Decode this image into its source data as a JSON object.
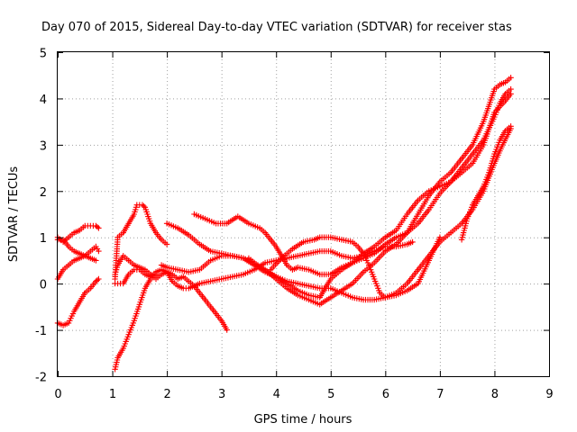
{
  "chart_data": {
    "type": "scatter",
    "title": "Day 070 of 2015, Sidereal Day-to-day VTEC variation (SDTVAR) for receiver stas",
    "xlabel": "GPS time / hours",
    "ylabel": "SDTVAR / TECUs",
    "xlim": [
      0,
      9
    ],
    "ylim": [
      -2,
      5
    ],
    "xticks": [
      "0",
      "1",
      "2",
      "3",
      "4",
      "5",
      "6",
      "7",
      "8",
      "9"
    ],
    "yticks": [
      "-2",
      "-1",
      "0",
      "1",
      "2",
      "3",
      "4",
      "5"
    ],
    "grid": true,
    "legend": "none",
    "marker": "+",
    "series_color": "#ff0000",
    "series": [
      {
        "name": "trace-1",
        "points": [
          [
            0.0,
            1.0
          ],
          [
            0.1,
            0.9
          ],
          [
            0.2,
            1.0
          ],
          [
            0.3,
            1.1
          ],
          [
            0.4,
            1.15
          ],
          [
            0.5,
            1.25
          ],
          [
            0.6,
            1.25
          ],
          [
            0.7,
            1.25
          ],
          [
            0.75,
            1.2
          ]
        ]
      },
      {
        "name": "trace-2",
        "points": [
          [
            0.0,
            0.95
          ],
          [
            0.1,
            0.95
          ],
          [
            0.2,
            0.8
          ],
          [
            0.3,
            0.7
          ],
          [
            0.4,
            0.65
          ],
          [
            0.5,
            0.6
          ],
          [
            0.6,
            0.55
          ],
          [
            0.7,
            0.5
          ]
        ]
      },
      {
        "name": "trace-3",
        "points": [
          [
            0.0,
            0.1
          ],
          [
            0.1,
            0.3
          ],
          [
            0.2,
            0.4
          ],
          [
            0.3,
            0.5
          ],
          [
            0.4,
            0.55
          ],
          [
            0.5,
            0.6
          ],
          [
            0.6,
            0.7
          ],
          [
            0.7,
            0.8
          ],
          [
            0.75,
            0.7
          ]
        ]
      },
      {
        "name": "trace-4",
        "points": [
          [
            0.0,
            -0.85
          ],
          [
            0.1,
            -0.9
          ],
          [
            0.2,
            -0.85
          ],
          [
            0.3,
            -0.6
          ],
          [
            0.4,
            -0.4
          ],
          [
            0.5,
            -0.2
          ],
          [
            0.6,
            -0.1
          ],
          [
            0.7,
            0.05
          ],
          [
            0.75,
            0.1
          ]
        ]
      },
      {
        "name": "trace-5",
        "points": [
          [
            1.05,
            -1.85
          ],
          [
            1.1,
            -1.6
          ],
          [
            1.2,
            -1.4
          ],
          [
            1.3,
            -1.1
          ],
          [
            1.4,
            -0.8
          ],
          [
            1.5,
            -0.45
          ],
          [
            1.6,
            -0.1
          ],
          [
            1.7,
            0.1
          ],
          [
            1.8,
            0.2
          ]
        ]
      },
      {
        "name": "trace-6",
        "points": [
          [
            1.05,
            0.1
          ],
          [
            1.1,
            1.0
          ],
          [
            1.2,
            1.1
          ],
          [
            1.3,
            1.3
          ],
          [
            1.4,
            1.5
          ],
          [
            1.45,
            1.7
          ],
          [
            1.55,
            1.7
          ],
          [
            1.6,
            1.65
          ],
          [
            1.7,
            1.3
          ],
          [
            1.8,
            1.1
          ],
          [
            1.9,
            0.95
          ],
          [
            2.0,
            0.85
          ]
        ]
      },
      {
        "name": "trace-7",
        "points": [
          [
            1.05,
            0.0
          ],
          [
            1.2,
            0.0
          ],
          [
            1.3,
            0.2
          ],
          [
            1.4,
            0.3
          ],
          [
            1.5,
            0.3
          ],
          [
            1.6,
            0.2
          ],
          [
            1.7,
            0.15
          ],
          [
            1.8,
            0.25
          ],
          [
            1.9,
            0.3
          ],
          [
            2.0,
            0.25
          ],
          [
            2.1,
            0.2
          ],
          [
            2.2,
            0.1
          ],
          [
            2.3,
            0.15
          ],
          [
            2.4,
            0.05
          ],
          [
            2.5,
            -0.05
          ],
          [
            2.6,
            -0.2
          ],
          [
            2.7,
            -0.35
          ],
          [
            2.8,
            -0.5
          ],
          [
            2.9,
            -0.65
          ],
          [
            3.0,
            -0.8
          ],
          [
            3.1,
            -1.0
          ]
        ]
      },
      {
        "name": "trace-8",
        "points": [
          [
            1.05,
            0.2
          ],
          [
            1.1,
            0.4
          ],
          [
            1.2,
            0.6
          ],
          [
            1.3,
            0.5
          ],
          [
            1.4,
            0.4
          ],
          [
            1.5,
            0.35
          ],
          [
            1.6,
            0.3
          ],
          [
            1.7,
            0.2
          ],
          [
            1.8,
            0.1
          ],
          [
            1.9,
            0.2
          ],
          [
            2.0,
            0.25
          ],
          [
            2.1,
            0.05
          ],
          [
            2.2,
            -0.05
          ],
          [
            2.3,
            -0.1
          ],
          [
            2.4,
            -0.1
          ],
          [
            2.5,
            -0.05
          ],
          [
            2.6,
            0.0
          ],
          [
            2.8,
            0.05
          ],
          [
            3.0,
            0.1
          ],
          [
            3.2,
            0.15
          ],
          [
            3.4,
            0.2
          ],
          [
            3.6,
            0.3
          ],
          [
            3.8,
            0.45
          ],
          [
            4.0,
            0.5
          ],
          [
            4.2,
            0.55
          ],
          [
            4.4,
            0.6
          ],
          [
            4.6,
            0.65
          ],
          [
            4.8,
            0.7
          ],
          [
            5.0,
            0.7
          ],
          [
            5.2,
            0.6
          ],
          [
            5.4,
            0.55
          ],
          [
            5.6,
            0.6
          ],
          [
            5.8,
            0.7
          ],
          [
            6.0,
            0.8
          ],
          [
            6.2,
            0.8
          ],
          [
            6.4,
            0.85
          ],
          [
            6.5,
            0.9
          ]
        ]
      },
      {
        "name": "trace-9",
        "points": [
          [
            1.9,
            0.4
          ],
          [
            2.0,
            0.35
          ],
          [
            2.2,
            0.3
          ],
          [
            2.4,
            0.25
          ],
          [
            2.6,
            0.3
          ],
          [
            2.8,
            0.5
          ],
          [
            3.0,
            0.6
          ],
          [
            3.2,
            0.6
          ],
          [
            3.4,
            0.55
          ],
          [
            3.6,
            0.4
          ],
          [
            3.8,
            0.25
          ],
          [
            4.0,
            0.15
          ],
          [
            4.2,
            0.05
          ],
          [
            4.4,
            0.0
          ],
          [
            4.6,
            -0.05
          ],
          [
            4.8,
            -0.1
          ],
          [
            5.0,
            -0.1
          ],
          [
            5.2,
            -0.2
          ],
          [
            5.4,
            -0.3
          ],
          [
            5.6,
            -0.35
          ],
          [
            5.8,
            -0.35
          ],
          [
            6.0,
            -0.3
          ],
          [
            6.2,
            -0.2
          ],
          [
            6.4,
            0.0
          ],
          [
            6.6,
            0.3
          ],
          [
            6.8,
            0.6
          ],
          [
            7.0,
            0.9
          ],
          [
            7.2,
            1.1
          ],
          [
            7.4,
            1.3
          ],
          [
            7.6,
            1.6
          ],
          [
            7.8,
            2.0
          ],
          [
            8.0,
            2.6
          ],
          [
            8.15,
            3.0
          ],
          [
            8.3,
            3.35
          ]
        ]
      },
      {
        "name": "trace-10",
        "points": [
          [
            2.5,
            1.5
          ],
          [
            2.7,
            1.4
          ],
          [
            2.9,
            1.3
          ],
          [
            3.1,
            1.3
          ],
          [
            3.3,
            1.45
          ],
          [
            3.5,
            1.3
          ],
          [
            3.7,
            1.2
          ],
          [
            3.8,
            1.1
          ],
          [
            4.0,
            0.8
          ],
          [
            4.1,
            0.6
          ],
          [
            4.2,
            0.4
          ],
          [
            4.3,
            0.3
          ],
          [
            4.4,
            0.35
          ],
          [
            4.6,
            0.3
          ],
          [
            4.8,
            0.2
          ],
          [
            5.0,
            0.2
          ],
          [
            5.2,
            0.35
          ],
          [
            5.4,
            0.45
          ],
          [
            5.6,
            0.55
          ],
          [
            5.8,
            0.65
          ],
          [
            6.0,
            0.85
          ],
          [
            6.2,
            1.0
          ],
          [
            6.4,
            1.1
          ],
          [
            6.6,
            1.3
          ],
          [
            6.8,
            1.6
          ],
          [
            7.0,
            1.95
          ],
          [
            7.2,
            2.2
          ],
          [
            7.4,
            2.5
          ],
          [
            7.6,
            2.8
          ],
          [
            7.8,
            3.1
          ],
          [
            8.0,
            3.6
          ],
          [
            8.1,
            3.9
          ],
          [
            8.2,
            4.1
          ],
          [
            8.3,
            4.2
          ]
        ]
      },
      {
        "name": "trace-11",
        "points": [
          [
            2.0,
            1.3
          ],
          [
            2.2,
            1.2
          ],
          [
            2.4,
            1.05
          ],
          [
            2.6,
            0.85
          ],
          [
            2.8,
            0.7
          ],
          [
            3.0,
            0.65
          ],
          [
            3.2,
            0.6
          ],
          [
            3.4,
            0.55
          ],
          [
            3.6,
            0.45
          ],
          [
            3.8,
            0.3
          ],
          [
            4.0,
            0.15
          ],
          [
            4.2,
            0.0
          ],
          [
            4.4,
            -0.15
          ],
          [
            4.6,
            -0.25
          ],
          [
            4.8,
            -0.3
          ],
          [
            4.9,
            -0.1
          ],
          [
            5.0,
            0.1
          ],
          [
            5.2,
            0.3
          ],
          [
            5.4,
            0.45
          ],
          [
            5.6,
            0.65
          ],
          [
            5.8,
            0.8
          ],
          [
            6.0,
            1.0
          ],
          [
            6.2,
            1.15
          ],
          [
            6.4,
            1.5
          ],
          [
            6.6,
            1.8
          ],
          [
            6.8,
            2.0
          ],
          [
            7.0,
            2.1
          ],
          [
            7.2,
            2.2
          ],
          [
            7.4,
            2.4
          ],
          [
            7.6,
            2.6
          ],
          [
            7.8,
            3.0
          ],
          [
            8.0,
            3.7
          ],
          [
            8.2,
            3.95
          ],
          [
            8.3,
            4.1
          ]
        ]
      },
      {
        "name": "trace-12",
        "points": [
          [
            3.5,
            0.55
          ],
          [
            3.7,
            0.35
          ],
          [
            3.9,
            0.2
          ],
          [
            4.0,
            0.1
          ],
          [
            4.2,
            -0.1
          ],
          [
            4.4,
            -0.25
          ],
          [
            4.6,
            -0.35
          ],
          [
            4.8,
            -0.45
          ],
          [
            5.0,
            -0.3
          ],
          [
            5.2,
            -0.15
          ],
          [
            5.4,
            0.0
          ],
          [
            5.6,
            0.25
          ],
          [
            5.8,
            0.45
          ],
          [
            6.0,
            0.7
          ],
          [
            6.2,
            0.85
          ],
          [
            6.4,
            1.1
          ],
          [
            6.6,
            1.5
          ],
          [
            6.8,
            1.9
          ],
          [
            7.0,
            2.2
          ],
          [
            7.2,
            2.4
          ],
          [
            7.4,
            2.7
          ],
          [
            7.6,
            3.0
          ],
          [
            7.8,
            3.5
          ],
          [
            8.0,
            4.2
          ],
          [
            8.1,
            4.3
          ],
          [
            8.2,
            4.35
          ],
          [
            8.3,
            4.45
          ]
        ]
      },
      {
        "name": "trace-13",
        "points": [
          [
            3.9,
            0.3
          ],
          [
            4.1,
            0.55
          ],
          [
            4.3,
            0.75
          ],
          [
            4.5,
            0.9
          ],
          [
            4.7,
            0.95
          ],
          [
            4.8,
            1.0
          ],
          [
            5.0,
            1.0
          ],
          [
            5.2,
            0.95
          ],
          [
            5.4,
            0.9
          ],
          [
            5.5,
            0.8
          ],
          [
            5.6,
            0.65
          ],
          [
            5.7,
            0.4
          ],
          [
            5.8,
            0.1
          ],
          [
            5.9,
            -0.2
          ],
          [
            6.0,
            -0.3
          ],
          [
            6.2,
            -0.25
          ],
          [
            6.4,
            -0.15
          ],
          [
            6.6,
            0.0
          ],
          [
            6.8,
            0.5
          ],
          [
            7.0,
            1.0
          ]
        ]
      },
      {
        "name": "trace-14",
        "points": [
          [
            7.4,
            0.95
          ],
          [
            7.5,
            1.4
          ],
          [
            7.6,
            1.7
          ],
          [
            7.7,
            1.9
          ],
          [
            7.8,
            2.1
          ],
          [
            7.9,
            2.4
          ],
          [
            8.0,
            2.8
          ],
          [
            8.1,
            3.1
          ],
          [
            8.2,
            3.3
          ],
          [
            8.3,
            3.4
          ]
        ]
      }
    ]
  }
}
